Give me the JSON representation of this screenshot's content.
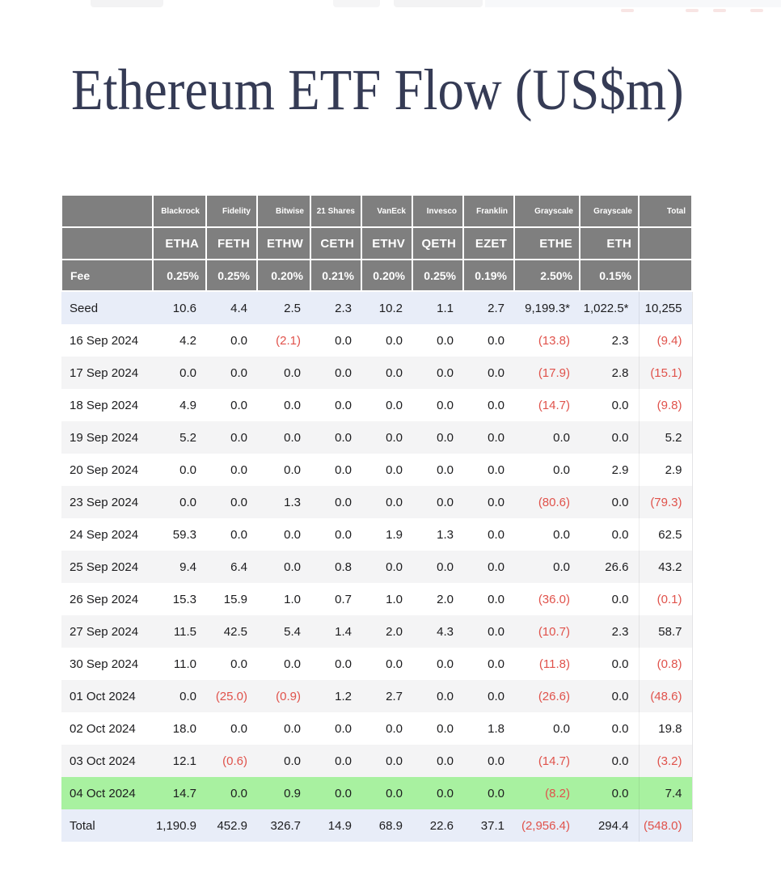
{
  "title": "Ethereum ETF Flow (US$m)",
  "chart_data": {
    "type": "table",
    "title": "Ethereum ETF Flow (US$m)",
    "unit": "US$m",
    "total_label": "Total",
    "fee_label": "Fee",
    "columns": [
      {
        "issuer": "Blackrock",
        "ticker": "ETHA",
        "fee": "0.25%"
      },
      {
        "issuer": "Fidelity",
        "ticker": "FETH",
        "fee": "0.25%"
      },
      {
        "issuer": "Bitwise",
        "ticker": "ETHW",
        "fee": "0.20%"
      },
      {
        "issuer": "21 Shares",
        "ticker": "CETH",
        "fee": "0.21%"
      },
      {
        "issuer": "VanEck",
        "ticker": "ETHV",
        "fee": "0.20%"
      },
      {
        "issuer": "Invesco",
        "ticker": "QETH",
        "fee": "0.25%"
      },
      {
        "issuer": "Franklin",
        "ticker": "EZET",
        "fee": "0.19%"
      },
      {
        "issuer": "Grayscale",
        "ticker": "ETHE",
        "fee": "2.50%"
      },
      {
        "issuer": "Grayscale",
        "ticker": "ETH",
        "fee": "0.15%"
      }
    ],
    "rows": [
      {
        "label": "Seed",
        "type": "seed",
        "values": [
          "10.6",
          "4.4",
          "2.5",
          "2.3",
          "10.2",
          "1.1",
          "2.7",
          "9,199.3*",
          "1,022.5*"
        ],
        "total": "10,255"
      },
      {
        "label": "16 Sep 2024",
        "type": "day",
        "values": [
          "4.2",
          "0.0",
          "(2.1)",
          "0.0",
          "0.0",
          "0.0",
          "0.0",
          "(13.8)",
          "2.3"
        ],
        "total": "(9.4)"
      },
      {
        "label": "17 Sep 2024",
        "type": "day",
        "values": [
          "0.0",
          "0.0",
          "0.0",
          "0.0",
          "0.0",
          "0.0",
          "0.0",
          "(17.9)",
          "2.8"
        ],
        "total": "(15.1)"
      },
      {
        "label": "18 Sep 2024",
        "type": "day",
        "values": [
          "4.9",
          "0.0",
          "0.0",
          "0.0",
          "0.0",
          "0.0",
          "0.0",
          "(14.7)",
          "0.0"
        ],
        "total": "(9.8)"
      },
      {
        "label": "19 Sep 2024",
        "type": "day",
        "values": [
          "5.2",
          "0.0",
          "0.0",
          "0.0",
          "0.0",
          "0.0",
          "0.0",
          "0.0",
          "0.0"
        ],
        "total": "5.2"
      },
      {
        "label": "20 Sep 2024",
        "type": "day",
        "values": [
          "0.0",
          "0.0",
          "0.0",
          "0.0",
          "0.0",
          "0.0",
          "0.0",
          "0.0",
          "2.9"
        ],
        "total": "2.9"
      },
      {
        "label": "23 Sep 2024",
        "type": "day",
        "values": [
          "0.0",
          "0.0",
          "1.3",
          "0.0",
          "0.0",
          "0.0",
          "0.0",
          "(80.6)",
          "0.0"
        ],
        "total": "(79.3)"
      },
      {
        "label": "24 Sep 2024",
        "type": "day",
        "values": [
          "59.3",
          "0.0",
          "0.0",
          "0.0",
          "1.9",
          "1.3",
          "0.0",
          "0.0",
          "0.0"
        ],
        "total": "62.5"
      },
      {
        "label": "25 Sep 2024",
        "type": "day",
        "values": [
          "9.4",
          "6.4",
          "0.0",
          "0.8",
          "0.0",
          "0.0",
          "0.0",
          "0.0",
          "26.6"
        ],
        "total": "43.2"
      },
      {
        "label": "26 Sep 2024",
        "type": "day",
        "values": [
          "15.3",
          "15.9",
          "1.0",
          "0.7",
          "1.0",
          "2.0",
          "0.0",
          "(36.0)",
          "0.0"
        ],
        "total": "(0.1)"
      },
      {
        "label": "27 Sep 2024",
        "type": "day",
        "values": [
          "11.5",
          "42.5",
          "5.4",
          "1.4",
          "2.0",
          "4.3",
          "0.0",
          "(10.7)",
          "2.3"
        ],
        "total": "58.7"
      },
      {
        "label": "30 Sep 2024",
        "type": "day",
        "values": [
          "11.0",
          "0.0",
          "0.0",
          "0.0",
          "0.0",
          "0.0",
          "0.0",
          "(11.8)",
          "0.0"
        ],
        "total": "(0.8)"
      },
      {
        "label": "01 Oct 2024",
        "type": "day",
        "values": [
          "0.0",
          "(25.0)",
          "(0.9)",
          "1.2",
          "2.7",
          "0.0",
          "0.0",
          "(26.6)",
          "0.0"
        ],
        "total": "(48.6)"
      },
      {
        "label": "02 Oct 2024",
        "type": "day",
        "values": [
          "18.0",
          "0.0",
          "0.0",
          "0.0",
          "0.0",
          "0.0",
          "1.8",
          "0.0",
          "0.0"
        ],
        "total": "19.8"
      },
      {
        "label": "03 Oct 2024",
        "type": "day",
        "values": [
          "12.1",
          "(0.6)",
          "0.0",
          "0.0",
          "0.0",
          "0.0",
          "0.0",
          "(14.7)",
          "0.0"
        ],
        "total": "(3.2)"
      },
      {
        "label": "04 Oct 2024",
        "type": "day",
        "highlight": true,
        "values": [
          "14.7",
          "0.0",
          "0.9",
          "0.0",
          "0.0",
          "0.0",
          "0.0",
          "(8.2)",
          "0.0"
        ],
        "total": "7.4"
      },
      {
        "label": "Total",
        "type": "total",
        "values": [
          "1,190.9",
          "452.9",
          "326.7",
          "14.9",
          "68.9",
          "22.6",
          "37.1",
          "(2,956.4)",
          "294.4"
        ],
        "total": "(548.0)"
      }
    ],
    "layout_hints": {
      "negative_format": "parentheses",
      "highlight_row": "04 Oct 2024",
      "seed_and_total_rows_tinted": true
    }
  },
  "colors": {
    "header_bg": "#7f7f7f",
    "seed_row_bg": "#e8edf8",
    "alt_row_bg": "#f4f4f5",
    "highlight_row_bg": "#a8f1a0",
    "total_row_bg": "#e8edf8",
    "negative_text": "#e0524b",
    "title_text": "#353b55"
  }
}
